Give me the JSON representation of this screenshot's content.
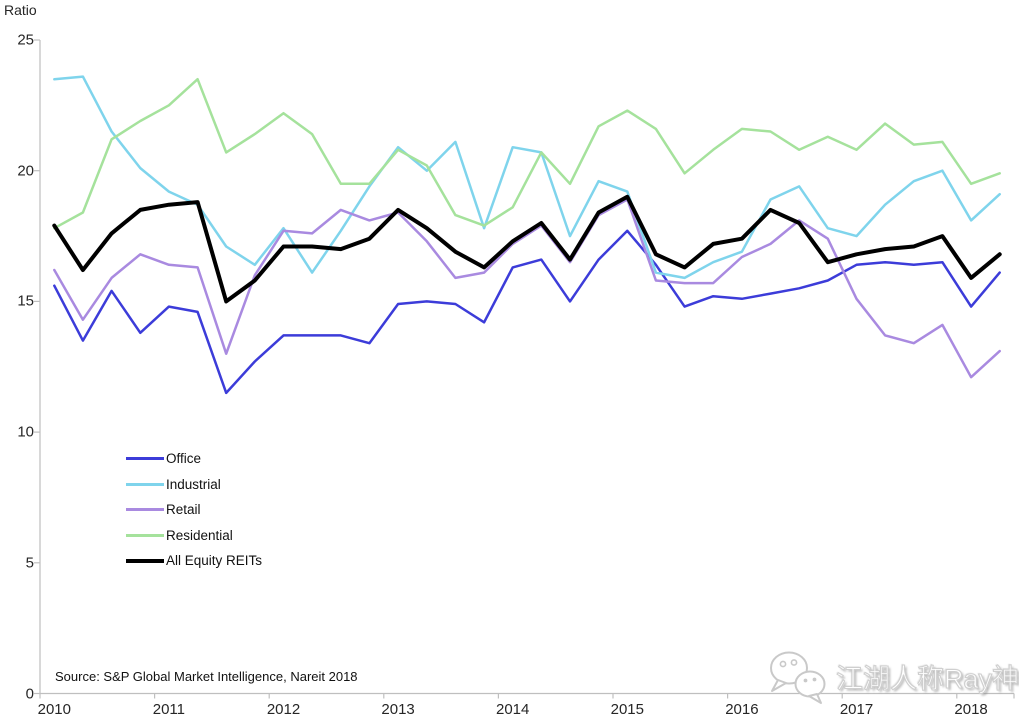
{
  "header": {
    "y_axis_title": "Ratio"
  },
  "source": {
    "text": "Source: S&P Global Market Intelligence, Nareit 2018"
  },
  "watermark": {
    "text": "江湖人称Ray神",
    "icon": "wechat-icon"
  },
  "colors": {
    "office": "#3c3cd9",
    "industrial": "#7fd4ec",
    "retail": "#a98ae0",
    "residential": "#a5e29c",
    "all_equity_reits": "#000000",
    "axis": "#bfbfbf",
    "label_text": "#262626"
  },
  "chart_data": {
    "type": "line",
    "title": "",
    "ylabel": "Ratio",
    "xlabel": "",
    "ylim": [
      0,
      25
    ],
    "y_ticks": [
      25,
      20,
      15,
      10,
      5,
      0
    ],
    "x_year_labels": [
      "2010",
      "2011",
      "2012",
      "2013",
      "2014",
      "2015",
      "2016",
      "2017",
      "2018"
    ],
    "periodicity": "quarterly",
    "points_per_year": 4,
    "range": "2010 Q1 - 2018 Q2",
    "grid": false,
    "legend_position": "middle-left",
    "series": [
      {
        "name": "Office",
        "color": "#3c3cd9",
        "width": 2.5,
        "values": [
          15.6,
          13.5,
          15.4,
          13.8,
          14.8,
          14.6,
          11.5,
          12.7,
          13.7,
          13.7,
          13.7,
          13.4,
          14.9,
          15.0,
          14.9,
          14.2,
          16.3,
          16.6,
          15.0,
          16.6,
          17.7,
          16.4,
          14.8,
          15.2,
          15.1,
          15.3,
          15.5,
          15.8,
          16.4,
          16.5,
          16.4,
          16.5,
          14.8,
          16.1
        ]
      },
      {
        "name": "Industrial",
        "color": "#7fd4ec",
        "width": 2.5,
        "values": [
          23.5,
          23.6,
          21.5,
          20.1,
          19.2,
          18.7,
          17.1,
          16.4,
          17.8,
          16.1,
          17.7,
          19.4,
          20.9,
          20.0,
          21.1,
          17.8,
          20.9,
          20.7,
          17.5,
          19.6,
          19.2,
          16.1,
          15.9,
          16.5,
          16.9,
          18.9,
          19.4,
          17.8,
          17.5,
          18.7,
          19.6,
          20.0,
          18.1,
          19.1
        ]
      },
      {
        "name": "Retail",
        "color": "#a98ae0",
        "width": 2.5,
        "values": [
          16.2,
          14.3,
          15.9,
          16.8,
          16.4,
          16.3,
          13.0,
          16.0,
          17.7,
          17.6,
          18.5,
          18.1,
          18.4,
          17.3,
          15.9,
          16.1,
          17.2,
          17.9,
          16.5,
          18.3,
          18.9,
          15.8,
          15.7,
          15.7,
          16.7,
          17.2,
          18.1,
          17.4,
          15.1,
          13.7,
          13.4,
          14.1,
          12.1,
          13.1
        ]
      },
      {
        "name": "Residential",
        "color": "#a5e29c",
        "width": 2.5,
        "values": [
          17.8,
          18.4,
          21.2,
          21.9,
          22.5,
          23.5,
          20.7,
          21.4,
          22.2,
          21.4,
          19.5,
          19.5,
          20.8,
          20.2,
          18.3,
          17.9,
          18.6,
          20.7,
          19.5,
          21.7,
          22.3,
          21.6,
          19.9,
          20.8,
          21.6,
          21.5,
          20.8,
          21.3,
          20.8,
          21.8,
          21.0,
          21.1,
          19.5,
          19.9
        ]
      },
      {
        "name": "All Equity REITs",
        "color": "#000000",
        "width": 4,
        "values": [
          17.9,
          16.2,
          17.6,
          18.5,
          18.7,
          18.8,
          15.0,
          15.8,
          17.1,
          17.1,
          17.0,
          17.4,
          18.5,
          17.8,
          16.9,
          16.3,
          17.3,
          18.0,
          16.6,
          18.4,
          19.0,
          16.8,
          16.3,
          17.2,
          17.4,
          18.5,
          18.0,
          16.5,
          16.8,
          17.0,
          17.1,
          17.5,
          15.9,
          16.8
        ]
      }
    ]
  }
}
